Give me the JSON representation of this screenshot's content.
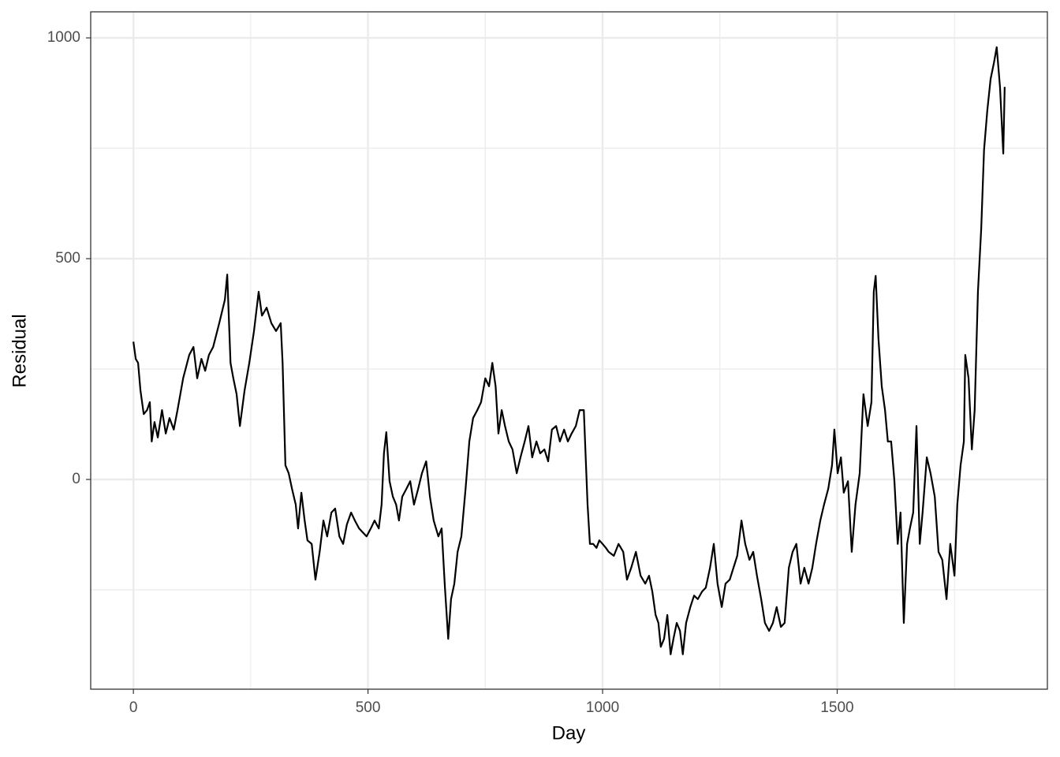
{
  "chart_data": {
    "type": "line",
    "xlabel": "Day",
    "ylabel": "Residual",
    "color": "#000000",
    "grid": true,
    "xlim": [
      -91,
      1948
    ],
    "ylim": [
      -475,
      1059
    ],
    "xticks": [
      0,
      500,
      1000,
      1500
    ],
    "yticks": [
      0,
      500,
      1000
    ],
    "xminorticks": [
      250,
      750,
      1250,
      1750
    ],
    "yminorticks": [
      -250,
      250,
      750
    ],
    "x": [
      0,
      5,
      10,
      15,
      22,
      29,
      35,
      39,
      45,
      52,
      61,
      69,
      77,
      86,
      94,
      106,
      119,
      128,
      136,
      145,
      153,
      161,
      170,
      183,
      195,
      200,
      207,
      213,
      220,
      227,
      237,
      247,
      257,
      267,
      274,
      284,
      294,
      304,
      314,
      318,
      324,
      331,
      338,
      346,
      351,
      358,
      365,
      371,
      380,
      388,
      397,
      405,
      413,
      422,
      430,
      439,
      447,
      455,
      464,
      472,
      481,
      489,
      497,
      506,
      514,
      523,
      529,
      534,
      539,
      546,
      553,
      560,
      566,
      573,
      582,
      590,
      598,
      607,
      615,
      624,
      632,
      640,
      650,
      657,
      664,
      671,
      677,
      684,
      691,
      699,
      708,
      716,
      724,
      733,
      741,
      750,
      758,
      765,
      772,
      778,
      785,
      792,
      800,
      808,
      817,
      825,
      834,
      842,
      850,
      859,
      867,
      876,
      884,
      892,
      901,
      909,
      918,
      926,
      934,
      943,
      951,
      960,
      968,
      973,
      980,
      987,
      993,
      1000,
      1007,
      1013,
      1024,
      1034,
      1044,
      1052,
      1061,
      1071,
      1081,
      1091,
      1099,
      1106,
      1113,
      1119,
      1124,
      1131,
      1138,
      1145,
      1151,
      1158,
      1165,
      1171,
      1178,
      1187,
      1195,
      1203,
      1212,
      1220,
      1229,
      1237,
      1245,
      1254,
      1262,
      1271,
      1279,
      1287,
      1296,
      1304,
      1313,
      1321,
      1329,
      1338,
      1346,
      1355,
      1363,
      1371,
      1380,
      1388,
      1397,
      1405,
      1413,
      1422,
      1430,
      1439,
      1447,
      1455,
      1464,
      1472,
      1481,
      1489,
      1494,
      1501,
      1508,
      1514,
      1523,
      1531,
      1539,
      1548,
      1556,
      1565,
      1573,
      1578,
      1582,
      1588,
      1595,
      1602,
      1608,
      1615,
      1622,
      1629,
      1635,
      1642,
      1649,
      1655,
      1662,
      1669,
      1676,
      1682,
      1691,
      1699,
      1708,
      1716,
      1724,
      1733,
      1741,
      1750,
      1756,
      1763,
      1770,
      1773,
      1780,
      1787,
      1793,
      1800,
      1807,
      1813,
      1820,
      1827,
      1834,
      1840,
      1847,
      1854,
      1857
    ],
    "values": [
      312,
      273,
      264,
      202,
      148,
      157,
      175,
      86,
      130,
      95,
      157,
      104,
      139,
      113,
      157,
      229,
      282,
      300,
      229,
      273,
      246,
      282,
      300,
      354,
      407,
      464,
      264,
      229,
      193,
      121,
      202,
      264,
      336,
      425,
      371,
      389,
      354,
      336,
      354,
      264,
      32,
      14,
      -21,
      -57,
      -111,
      -30,
      -93,
      -138,
      -146,
      -227,
      -164,
      -93,
      -129,
      -75,
      -66,
      -129,
      -146,
      -102,
      -75,
      -93,
      -111,
      -120,
      -129,
      -111,
      -93,
      -111,
      -57,
      59,
      107,
      -4,
      -39,
      -57,
      -93,
      -39,
      -21,
      -4,
      -57,
      -21,
      14,
      41,
      -39,
      -93,
      -129,
      -111,
      -245,
      -361,
      -271,
      -236,
      -164,
      -129,
      -21,
      86,
      139,
      157,
      175,
      229,
      211,
      264,
      211,
      104,
      157,
      121,
      86,
      68,
      14,
      50,
      86,
      121,
      50,
      86,
      59,
      68,
      41,
      113,
      121,
      86,
      113,
      86,
      104,
      121,
      157,
      157,
      -57,
      -146,
      -146,
      -155,
      -138,
      -146,
      -155,
      -164,
      -173,
      -146,
      -164,
      -227,
      -200,
      -164,
      -218,
      -236,
      -218,
      -254,
      -307,
      -325,
      -379,
      -361,
      -307,
      -396,
      -361,
      -325,
      -343,
      -396,
      -325,
      -289,
      -263,
      -271,
      -254,
      -245,
      -200,
      -146,
      -236,
      -289,
      -236,
      -227,
      -200,
      -173,
      -93,
      -146,
      -182,
      -164,
      -218,
      -271,
      -325,
      -343,
      -325,
      -289,
      -334,
      -325,
      -200,
      -164,
      -146,
      -236,
      -200,
      -236,
      -200,
      -146,
      -93,
      -57,
      -21,
      32,
      113,
      14,
      50,
      -30,
      -4,
      -164,
      -57,
      14,
      193,
      121,
      175,
      425,
      461,
      318,
      211,
      157,
      86,
      86,
      -4,
      -146,
      -75,
      -325,
      -146,
      -111,
      -75,
      121,
      -146,
      -75,
      50,
      14,
      -39,
      -164,
      -182,
      -271,
      -146,
      -218,
      -57,
      32,
      86,
      282,
      229,
      68,
      157,
      425,
      568,
      746,
      836,
      907,
      943,
      979,
      889,
      738,
      889
    ]
  }
}
